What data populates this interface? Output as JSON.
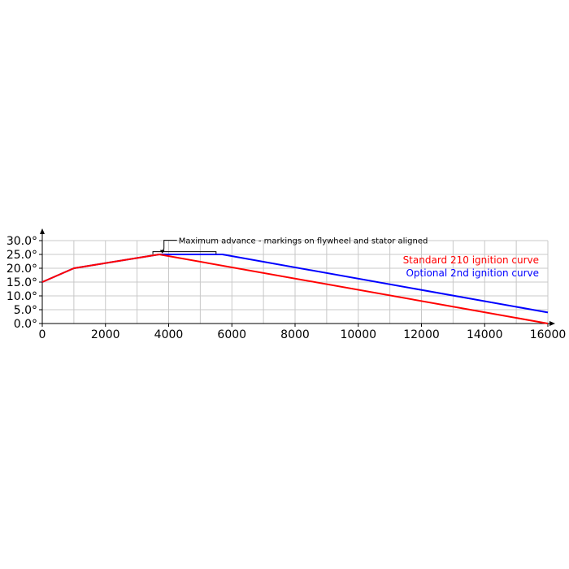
{
  "chart_data": {
    "type": "line",
    "title": "",
    "xlabel": "",
    "ylabel": "",
    "xlim": [
      0,
      16000
    ],
    "ylim": [
      0,
      30
    ],
    "grid": true,
    "x_ticks": [
      0,
      2000,
      4000,
      6000,
      8000,
      10000,
      12000,
      14000,
      16000
    ],
    "x_tick_labels": [
      "0",
      "2000",
      "4000",
      "6000",
      "8000",
      "10000",
      "12000",
      "14000",
      "16000"
    ],
    "y_ticks": [
      0,
      5,
      10,
      15,
      20,
      25,
      30
    ],
    "y_tick_labels": [
      "0.0°",
      "5.0°",
      "10.0°",
      "15.0°",
      "20.0°",
      "25.0°",
      "30.0°"
    ],
    "legend_position": "top-right",
    "series": [
      {
        "name": "Standard 210 ignition curve",
        "color": "#ff0000",
        "points": [
          [
            0,
            15
          ],
          [
            1000,
            20
          ],
          [
            3700,
            25
          ],
          [
            16000,
            0
          ]
        ]
      },
      {
        "name": "Optional 2nd ignition curve",
        "color": "#0000ff",
        "points": [
          [
            0,
            15
          ],
          [
            1000,
            20
          ],
          [
            3700,
            25
          ],
          [
            5700,
            25
          ],
          [
            16000,
            4
          ]
        ]
      }
    ],
    "annotation": {
      "text": "Maximum advance - markings on flywheel and stator aligned",
      "range": [
        3500,
        5500
      ],
      "value": 26
    }
  }
}
